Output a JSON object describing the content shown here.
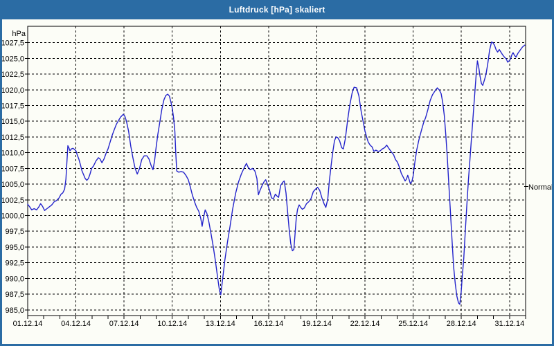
{
  "window": {
    "title": "Luftdruck [hPa] skaliert"
  },
  "colors": {
    "titlebar": "#2b6ca4",
    "window_border": "#2b6ca4",
    "background": "#fcfdf7",
    "grid": "#000000",
    "line": "#2323cb"
  },
  "chart_data": {
    "type": "line",
    "title": "Luftdruck [hPa] skaliert",
    "unit_label": "hPa",
    "grid": "dashed",
    "legend_position": "none",
    "x_axis": {
      "tick_labels": [
        "01.12.14",
        "04.12.14",
        "07.12.14",
        "10.12.14",
        "13.12.14",
        "16.12.14",
        "19.12.14",
        "22.12.14",
        "25.12.14",
        "28.12.14",
        "31.12.14"
      ],
      "tick_days": [
        1,
        4,
        7,
        10,
        13,
        16,
        19,
        22,
        25,
        28,
        31
      ],
      "minor_tick_every_days": 1,
      "range_days": [
        1,
        32
      ]
    },
    "y_axis": {
      "unit": "hPa",
      "tick_labels": [
        "1027,5",
        "1025,0",
        "1022,5",
        "1020,0",
        "1017,5",
        "1015,0",
        "1012,5",
        "1010,0",
        "1007,5",
        "1005,0",
        "1002,5",
        "1000,0",
        "997,5",
        "995,0",
        "992,5",
        "990,0",
        "987,5",
        "985,0"
      ],
      "tick_values": [
        1027.5,
        1025.0,
        1022.5,
        1020.0,
        1017.5,
        1015.0,
        1012.5,
        1010.0,
        1007.5,
        1005.0,
        1002.5,
        1000.0,
        997.5,
        995.0,
        992.5,
        990.0,
        987.5,
        985.0
      ],
      "ylim": [
        985.0,
        1027.5
      ],
      "tick_step": 2.5
    },
    "annotation": {
      "label": "Normal",
      "value_hpa": 1004.6
    },
    "series": [
      {
        "name": "Luftdruck [hPa] skaliert",
        "color": "#2323cb",
        "points": [
          [
            1.0,
            1001.8
          ],
          [
            1.12,
            1001.4
          ],
          [
            1.25,
            1000.9
          ],
          [
            1.4,
            1001.1
          ],
          [
            1.55,
            1000.9
          ],
          [
            1.7,
            1001.4
          ],
          [
            1.8,
            1001.9
          ],
          [
            1.92,
            1001.5
          ],
          [
            2.05,
            1000.8
          ],
          [
            2.2,
            1001.1
          ],
          [
            2.35,
            1001.4
          ],
          [
            2.5,
            1001.7
          ],
          [
            2.65,
            1002.2
          ],
          [
            2.8,
            1002.4
          ],
          [
            2.95,
            1002.8
          ],
          [
            3.08,
            1003.4
          ],
          [
            3.18,
            1003.6
          ],
          [
            3.3,
            1004.2
          ],
          [
            3.38,
            1005.8
          ],
          [
            3.44,
            1008.5
          ],
          [
            3.5,
            1011.1
          ],
          [
            3.56,
            1010.8
          ],
          [
            3.63,
            1010.3
          ],
          [
            3.72,
            1010.6
          ],
          [
            3.82,
            1010.7
          ],
          [
            3.92,
            1010.5
          ],
          [
            4.0,
            1010.3
          ],
          [
            4.08,
            1009.7
          ],
          [
            4.18,
            1009.0
          ],
          [
            4.28,
            1008.1
          ],
          [
            4.38,
            1007.1
          ],
          [
            4.48,
            1006.5
          ],
          [
            4.58,
            1005.9
          ],
          [
            4.68,
            1005.6
          ],
          [
            4.78,
            1005.9
          ],
          [
            4.88,
            1006.6
          ],
          [
            4.98,
            1007.5
          ],
          [
            5.1,
            1007.9
          ],
          [
            5.25,
            1008.7
          ],
          [
            5.4,
            1009.2
          ],
          [
            5.5,
            1009.0
          ],
          [
            5.62,
            1008.4
          ],
          [
            5.75,
            1009.0
          ],
          [
            5.88,
            1009.9
          ],
          [
            6.0,
            1010.6
          ],
          [
            6.12,
            1011.6
          ],
          [
            6.25,
            1012.7
          ],
          [
            6.38,
            1013.6
          ],
          [
            6.52,
            1014.5
          ],
          [
            6.65,
            1015.1
          ],
          [
            6.8,
            1015.7
          ],
          [
            6.95,
            1016.1
          ],
          [
            7.05,
            1015.8
          ],
          [
            7.15,
            1015.0
          ],
          [
            7.28,
            1013.4
          ],
          [
            7.42,
            1011.0
          ],
          [
            7.55,
            1009.2
          ],
          [
            7.68,
            1007.6
          ],
          [
            7.82,
            1006.6
          ],
          [
            7.95,
            1007.4
          ],
          [
            8.1,
            1008.9
          ],
          [
            8.25,
            1009.5
          ],
          [
            8.42,
            1009.5
          ],
          [
            8.55,
            1009.0
          ],
          [
            8.68,
            1008.0
          ],
          [
            8.8,
            1007.3
          ],
          [
            8.9,
            1008.7
          ],
          [
            9.0,
            1010.9
          ],
          [
            9.1,
            1012.9
          ],
          [
            9.22,
            1014.8
          ],
          [
            9.35,
            1016.9
          ],
          [
            9.48,
            1018.4
          ],
          [
            9.6,
            1019.1
          ],
          [
            9.72,
            1019.3
          ],
          [
            9.82,
            1019.0
          ],
          [
            9.92,
            1018.0
          ],
          [
            10.0,
            1017.1
          ],
          [
            10.08,
            1015.6
          ],
          [
            10.16,
            1013.4
          ],
          [
            10.22,
            1010.0
          ],
          [
            10.28,
            1007.1
          ],
          [
            10.4,
            1006.9
          ],
          [
            10.55,
            1007.0
          ],
          [
            10.7,
            1006.9
          ],
          [
            10.85,
            1006.4
          ],
          [
            11.0,
            1005.7
          ],
          [
            11.12,
            1004.6
          ],
          [
            11.25,
            1003.3
          ],
          [
            11.4,
            1002.1
          ],
          [
            11.52,
            1001.3
          ],
          [
            11.65,
            1000.7
          ],
          [
            11.78,
            999.5
          ],
          [
            11.86,
            998.3
          ],
          [
            11.95,
            999.7
          ],
          [
            12.05,
            1000.9
          ],
          [
            12.15,
            1000.4
          ],
          [
            12.28,
            999.0
          ],
          [
            12.42,
            997.0
          ],
          [
            12.55,
            995.1
          ],
          [
            12.68,
            992.9
          ],
          [
            12.82,
            990.3
          ],
          [
            12.94,
            988.1
          ],
          [
            13.02,
            987.4
          ],
          [
            13.14,
            990.0
          ],
          [
            13.28,
            993.0
          ],
          [
            13.44,
            995.8
          ],
          [
            13.6,
            998.3
          ],
          [
            13.76,
            1001.0
          ],
          [
            13.95,
            1003.6
          ],
          [
            14.12,
            1005.3
          ],
          [
            14.3,
            1006.6
          ],
          [
            14.48,
            1007.6
          ],
          [
            14.62,
            1008.3
          ],
          [
            14.72,
            1007.7
          ],
          [
            14.85,
            1007.3
          ],
          [
            15.0,
            1007.5
          ],
          [
            15.14,
            1007.1
          ],
          [
            15.27,
            1005.9
          ],
          [
            15.36,
            1003.3
          ],
          [
            15.48,
            1004.1
          ],
          [
            15.6,
            1004.8
          ],
          [
            15.72,
            1005.4
          ],
          [
            15.82,
            1005.7
          ],
          [
            15.94,
            1004.9
          ],
          [
            16.05,
            1004.1
          ],
          [
            16.18,
            1002.8
          ],
          [
            16.3,
            1002.7
          ],
          [
            16.42,
            1003.4
          ],
          [
            16.52,
            1003.1
          ],
          [
            16.62,
            1002.9
          ],
          [
            16.75,
            1004.8
          ],
          [
            16.88,
            1005.3
          ],
          [
            16.97,
            1005.5
          ],
          [
            17.08,
            1003.6
          ],
          [
            17.18,
            1000.6
          ],
          [
            17.28,
            997.8
          ],
          [
            17.38,
            995.5
          ],
          [
            17.48,
            994.4
          ],
          [
            17.57,
            994.6
          ],
          [
            17.64,
            996.8
          ],
          [
            17.72,
            999.6
          ],
          [
            17.8,
            1001.0
          ],
          [
            17.9,
            1001.7
          ],
          [
            18.0,
            1001.3
          ],
          [
            18.1,
            1001.0
          ],
          [
            18.22,
            1001.2
          ],
          [
            18.36,
            1001.9
          ],
          [
            18.5,
            1002.2
          ],
          [
            18.64,
            1002.7
          ],
          [
            18.78,
            1003.8
          ],
          [
            18.92,
            1004.2
          ],
          [
            19.05,
            1004.5
          ],
          [
            19.18,
            1004.0
          ],
          [
            19.32,
            1002.8
          ],
          [
            19.45,
            1001.9
          ],
          [
            19.56,
            1001.3
          ],
          [
            19.68,
            1002.6
          ],
          [
            19.78,
            1005.5
          ],
          [
            19.9,
            1008.2
          ],
          [
            20.0,
            1010.2
          ],
          [
            20.1,
            1011.9
          ],
          [
            20.2,
            1012.5
          ],
          [
            20.3,
            1012.4
          ],
          [
            20.42,
            1011.9
          ],
          [
            20.55,
            1010.8
          ],
          [
            20.65,
            1010.6
          ],
          [
            20.78,
            1012.3
          ],
          [
            20.92,
            1015.2
          ],
          [
            21.05,
            1017.5
          ],
          [
            21.2,
            1019.5
          ],
          [
            21.32,
            1020.4
          ],
          [
            21.48,
            1020.3
          ],
          [
            21.62,
            1019.0
          ],
          [
            21.76,
            1016.6
          ],
          [
            21.88,
            1015.0
          ],
          [
            22.0,
            1013.4
          ],
          [
            22.1,
            1012.5
          ],
          [
            22.2,
            1011.7
          ],
          [
            22.32,
            1011.2
          ],
          [
            22.45,
            1010.9
          ],
          [
            22.55,
            1010.2
          ],
          [
            22.68,
            1010.4
          ],
          [
            22.82,
            1010.2
          ],
          [
            22.95,
            1010.3
          ],
          [
            23.08,
            1010.6
          ],
          [
            23.22,
            1010.8
          ],
          [
            23.35,
            1011.2
          ],
          [
            23.48,
            1010.7
          ],
          [
            23.62,
            1010.2
          ],
          [
            23.78,
            1009.7
          ],
          [
            23.9,
            1008.9
          ],
          [
            24.02,
            1008.5
          ],
          [
            24.14,
            1007.7
          ],
          [
            24.26,
            1006.7
          ],
          [
            24.38,
            1006.1
          ],
          [
            24.5,
            1005.5
          ],
          [
            24.58,
            1005.8
          ],
          [
            24.66,
            1006.4
          ],
          [
            24.74,
            1005.8
          ],
          [
            24.82,
            1005.1
          ],
          [
            24.92,
            1005.4
          ],
          [
            25.0,
            1006.3
          ],
          [
            25.1,
            1008.4
          ],
          [
            25.22,
            1010.4
          ],
          [
            25.35,
            1012.0
          ],
          [
            25.5,
            1013.4
          ],
          [
            25.64,
            1014.7
          ],
          [
            25.78,
            1015.6
          ],
          [
            25.92,
            1016.9
          ],
          [
            26.06,
            1018.3
          ],
          [
            26.2,
            1019.2
          ],
          [
            26.35,
            1019.8
          ],
          [
            26.5,
            1020.3
          ],
          [
            26.62,
            1020.0
          ],
          [
            26.74,
            1019.4
          ],
          [
            26.84,
            1018.0
          ],
          [
            26.94,
            1015.9
          ],
          [
            27.03,
            1012.9
          ],
          [
            27.12,
            1009.5
          ],
          [
            27.22,
            1005.0
          ],
          [
            27.32,
            1000.5
          ],
          [
            27.42,
            996.0
          ],
          [
            27.52,
            991.8
          ],
          [
            27.62,
            989.2
          ],
          [
            27.72,
            987.2
          ],
          [
            27.82,
            986.1
          ],
          [
            27.9,
            985.9
          ],
          [
            27.98,
            987.6
          ],
          [
            28.06,
            990.4
          ],
          [
            28.15,
            993.2
          ],
          [
            28.24,
            997.3
          ],
          [
            28.34,
            1001.6
          ],
          [
            28.44,
            1005.6
          ],
          [
            28.54,
            1009.2
          ],
          [
            28.64,
            1012.7
          ],
          [
            28.74,
            1016.1
          ],
          [
            28.84,
            1019.6
          ],
          [
            28.92,
            1022.4
          ],
          [
            29.0,
            1024.6
          ],
          [
            29.08,
            1023.6
          ],
          [
            29.16,
            1022.2
          ],
          [
            29.25,
            1021.0
          ],
          [
            29.33,
            1020.7
          ],
          [
            29.43,
            1021.5
          ],
          [
            29.53,
            1022.4
          ],
          [
            29.64,
            1024.1
          ],
          [
            29.76,
            1026.3
          ],
          [
            29.88,
            1027.6
          ],
          [
            29.96,
            1027.5
          ],
          [
            30.06,
            1027.1
          ],
          [
            30.16,
            1026.4
          ],
          [
            30.26,
            1026.0
          ],
          [
            30.36,
            1026.4
          ],
          [
            30.46,
            1026.0
          ],
          [
            30.56,
            1025.6
          ],
          [
            30.68,
            1025.2
          ],
          [
            30.8,
            1024.9
          ],
          [
            30.88,
            1024.4
          ],
          [
            30.97,
            1024.6
          ],
          [
            31.06,
            1024.9
          ],
          [
            31.15,
            1025.6
          ],
          [
            31.22,
            1025.9
          ],
          [
            31.3,
            1025.5
          ],
          [
            31.4,
            1025.2
          ],
          [
            31.52,
            1025.8
          ],
          [
            31.66,
            1026.3
          ],
          [
            31.8,
            1026.8
          ],
          [
            31.95,
            1027.1
          ]
        ]
      }
    ]
  }
}
